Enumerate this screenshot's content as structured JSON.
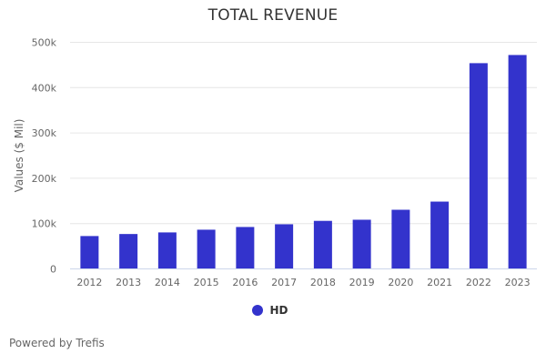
{
  "chart_data": {
    "type": "bar",
    "title": "TOTAL REVENUE",
    "xlabel": "",
    "ylabel": "Values ($ Mil)",
    "categories": [
      "2012",
      "2013",
      "2014",
      "2015",
      "2016",
      "2017",
      "2018",
      "2019",
      "2020",
      "2021",
      "2022",
      "2023"
    ],
    "series": [
      {
        "name": "HD",
        "color": "#3333cc",
        "values": [
          72500,
          77000,
          80500,
          86500,
          92500,
          98500,
          106000,
          108500,
          130500,
          148500,
          454000,
          472000
        ]
      }
    ],
    "ylim": [
      0,
      500000
    ],
    "yticks": [
      0,
      100000,
      200000,
      300000,
      400000,
      500000
    ],
    "ytick_labels": [
      "0",
      "100k",
      "200k",
      "300k",
      "400k",
      "500k"
    ],
    "grid": true,
    "legend_position": "bottom-center"
  },
  "footer": {
    "credit": "Powered by Trefis"
  }
}
